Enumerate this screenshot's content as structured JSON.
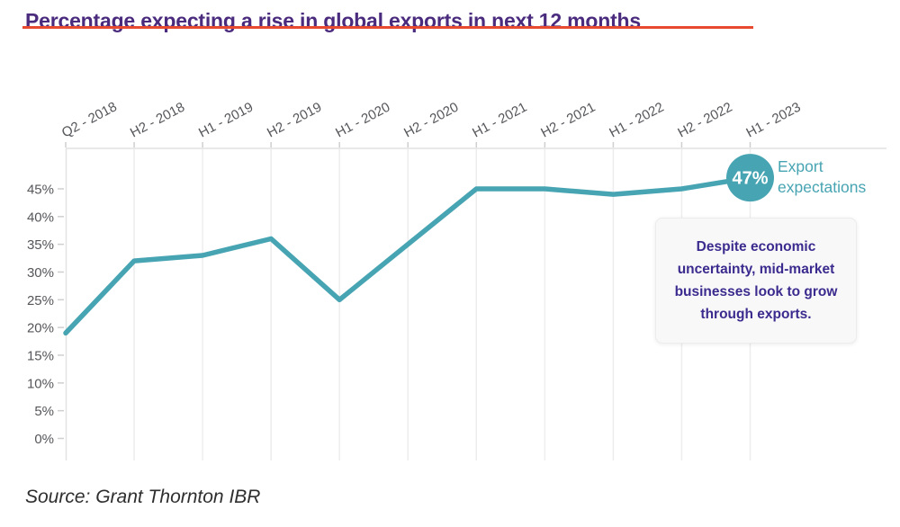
{
  "title": "Percentage expecting a rise in global exports in next 12 months",
  "source": "Source: Grant Thornton IBR",
  "annotations": {
    "badge_label": "47%",
    "series_label": "Export expectations",
    "callout": "Despite economic uncertainty, mid-market businesses look to grow through exports."
  },
  "colors": {
    "teal": "#47A4B2",
    "title_purple": "#4A2B7E",
    "callout_purple": "#3C2B8E",
    "strike_red": "#E84A2F",
    "axis_text": "#55565A",
    "axis_line": "#E2E2E2",
    "grid": "#EDEDED",
    "tick": "#CFCFCF",
    "badge_text": "#FFFFFF"
  },
  "chart_data": {
    "type": "line",
    "title": "Percentage expecting a rise in global exports in next 12 months",
    "xlabel": "",
    "ylabel": "",
    "categories": [
      "Q2 - 2018",
      "H2 - 2018",
      "H1 - 2019",
      "H2 - 2019",
      "H1 - 2020",
      "H2 - 2020",
      "H1 - 2021",
      "H2 - 2021",
      "H1 - 2022",
      "H2 - 2022",
      "H1 - 2023"
    ],
    "series": [
      {
        "name": "Export expectations",
        "values": [
          19,
          32,
          33,
          36,
          25,
          35,
          45,
          45,
          44,
          45,
          47
        ]
      }
    ],
    "yticks": [
      45,
      40,
      35,
      30,
      25,
      20,
      15,
      10,
      5,
      0
    ],
    "ytick_labels": [
      "45%",
      "40%",
      "35%",
      "30%",
      "25%",
      "20%",
      "15%",
      "10%",
      "5%",
      "0%"
    ],
    "ylim": [
      0,
      52
    ],
    "grid": "vertical-only",
    "legend_position": "top-right-inline-badge",
    "annotation_last_value": 47
  }
}
